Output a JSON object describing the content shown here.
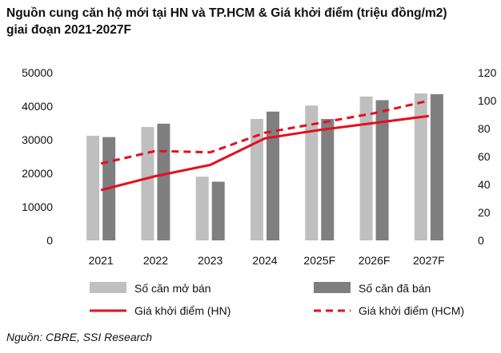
{
  "title_line1": "Nguồn cung căn hộ mới tại HN và TP.HCM & Giá khởi điểm (triệu đồng/m2)",
  "title_line2": "giai đoạn 2021-2027F",
  "source": "Nguồn: CBRE, SSI Research",
  "colors": {
    "opened": "#bfbfbf",
    "sold": "#7f7f7f",
    "price_line": "#e3101e"
  },
  "chart_data": {
    "type": "bar",
    "categories": [
      "2021",
      "2022",
      "2023",
      "2024",
      "2025F",
      "2026F",
      "2027F"
    ],
    "series": [
      {
        "name": "Số căn mở bán",
        "kind": "bar",
        "axis": "left",
        "values": [
          31200,
          33800,
          19000,
          36200,
          40200,
          42900,
          43800
        ]
      },
      {
        "name": "Số căn đã bán",
        "kind": "bar",
        "axis": "left",
        "values": [
          30800,
          34800,
          17500,
          38400,
          36200,
          41800,
          43600
        ]
      },
      {
        "name": "Giá khởi điểm (HN)",
        "kind": "line",
        "style": "solid",
        "axis": "right",
        "values": [
          36,
          46,
          54,
          73,
          79,
          84,
          89
        ]
      },
      {
        "name": "Giá khởi điểm (HCM)",
        "kind": "line",
        "style": "dashed",
        "axis": "right",
        "values": [
          55,
          64,
          63,
          77,
          84,
          91,
          100
        ]
      }
    ],
    "left_axis": {
      "min": 0,
      "max": 50000,
      "ticks": [
        0,
        10000,
        20000,
        30000,
        40000,
        50000
      ]
    },
    "right_axis": {
      "min": 0,
      "max": 120,
      "ticks": [
        0,
        20,
        40,
        60,
        80,
        100,
        120
      ]
    },
    "grid": false,
    "legend_position": "bottom"
  }
}
